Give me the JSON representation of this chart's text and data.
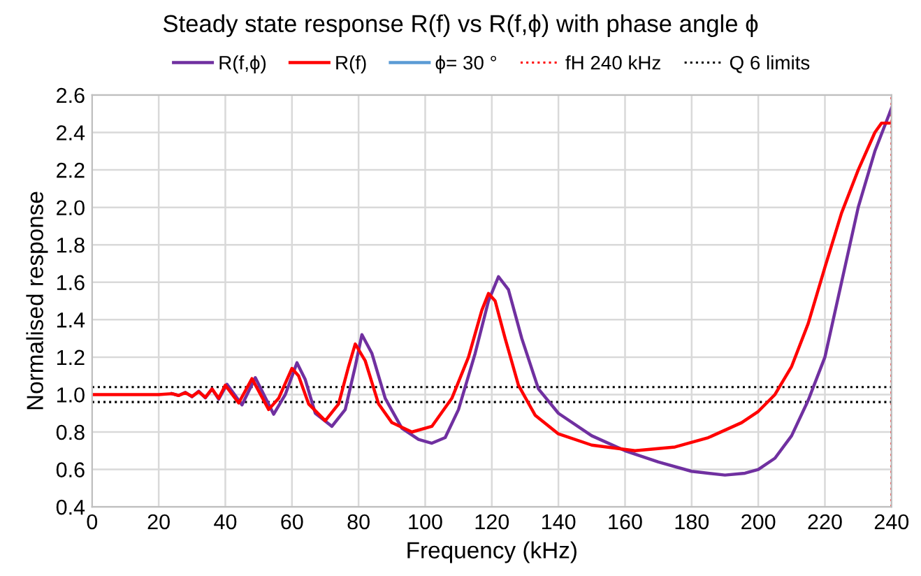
{
  "chart_data": {
    "type": "line",
    "title": "Steady state response R(f) vs R(f,ϕ) with phase angle ϕ",
    "xlabel": "Frequency (kHz)",
    "ylabel": "Normalised response",
    "xlim": [
      0,
      240
    ],
    "xticks": [
      0,
      20,
      40,
      60,
      80,
      100,
      120,
      140,
      160,
      180,
      200,
      220,
      240
    ],
    "ylim": [
      0.4,
      2.6
    ],
    "yticks": [
      {
        "value": 0.4,
        "label": "0.4"
      },
      {
        "value": 0.6,
        "label": "0.6"
      },
      {
        "value": 0.8,
        "label": "0.8"
      },
      {
        "value": 1.0,
        "label": "1.0"
      },
      {
        "value": 1.2,
        "label": "1.2"
      },
      {
        "value": 1.4,
        "label": "1.4"
      },
      {
        "value": 1.6,
        "label": "1.6"
      },
      {
        "value": 1.8,
        "label": "1.8"
      },
      {
        "value": 2.0,
        "label": "2.0"
      },
      {
        "value": 2.2,
        "label": "2.2"
      },
      {
        "value": 2.4,
        "label": "2.4"
      },
      {
        "value": 2.6,
        "label": "2.6"
      }
    ],
    "grid": true,
    "legend": "top",
    "marker": "none",
    "line_style": "solid",
    "series": [
      {
        "name": "R(f,ϕ)",
        "color": "#7030a0",
        "x": [
          24,
          26,
          28,
          30,
          32,
          34,
          36,
          38,
          40.5,
          45,
          49,
          54.5,
          58,
          61.5,
          64,
          67,
          72,
          76,
          79,
          81,
          84,
          88,
          93,
          98,
          102,
          106,
          110,
          115,
          119,
          122,
          125,
          129,
          134,
          140,
          150,
          160,
          170,
          180,
          190,
          196,
          200,
          205,
          210,
          215,
          220,
          225,
          230,
          235,
          240
        ],
        "values": [
          1.005,
          0.995,
          1.012,
          0.988,
          1.018,
          0.982,
          1.03,
          0.975,
          1.055,
          0.945,
          1.09,
          0.895,
          1.0,
          1.17,
          1.08,
          0.9,
          0.83,
          0.92,
          1.15,
          1.32,
          1.22,
          0.98,
          0.82,
          0.76,
          0.74,
          0.77,
          0.92,
          1.22,
          1.5,
          1.63,
          1.56,
          1.3,
          1.03,
          0.9,
          0.78,
          0.7,
          0.64,
          0.59,
          0.57,
          0.58,
          0.6,
          0.66,
          0.78,
          0.97,
          1.2,
          1.6,
          2.0,
          2.3,
          2.53
        ]
      },
      {
        "name": "R(f)",
        "color": "#ff0000",
        "x": [
          0,
          20,
          24,
          26,
          28,
          30,
          32,
          34,
          36,
          38,
          40,
          44,
          48,
          53,
          56,
          60,
          62,
          65,
          70,
          74,
          77,
          79,
          82,
          86,
          90,
          96,
          102,
          108,
          113,
          117,
          119,
          121,
          124,
          128,
          133,
          140,
          150,
          163,
          175,
          185,
          195,
          200,
          205,
          210,
          215,
          220,
          225,
          230,
          235,
          237,
          240
        ],
        "values": [
          1.0,
          1.0,
          1.005,
          0.995,
          1.01,
          0.99,
          1.015,
          0.985,
          1.03,
          0.98,
          1.05,
          0.955,
          1.085,
          0.92,
          0.98,
          1.14,
          1.1,
          0.95,
          0.86,
          0.95,
          1.15,
          1.27,
          1.18,
          0.95,
          0.85,
          0.8,
          0.83,
          0.98,
          1.2,
          1.45,
          1.54,
          1.5,
          1.3,
          1.05,
          0.89,
          0.79,
          0.73,
          0.7,
          0.72,
          0.77,
          0.85,
          0.91,
          1.0,
          1.15,
          1.38,
          1.68,
          1.97,
          2.2,
          2.4,
          2.45,
          2.45
        ]
      },
      {
        "name": "ϕ= 30 °",
        "color": "#5b9bd5",
        "values": [
          null
        ]
      }
    ],
    "ref_lines": [
      {
        "axis": "x",
        "value": 240,
        "label": "fH 240 kHz",
        "color": "#ff0000",
        "line_style": "dotted"
      },
      {
        "axis": "y",
        "value": 1.04,
        "label": "Q 6 limits",
        "color": "#000000",
        "line_style": "dotted"
      },
      {
        "axis": "y",
        "value": 0.96,
        "label": null,
        "color": "#000000",
        "line_style": "dotted"
      }
    ]
  }
}
